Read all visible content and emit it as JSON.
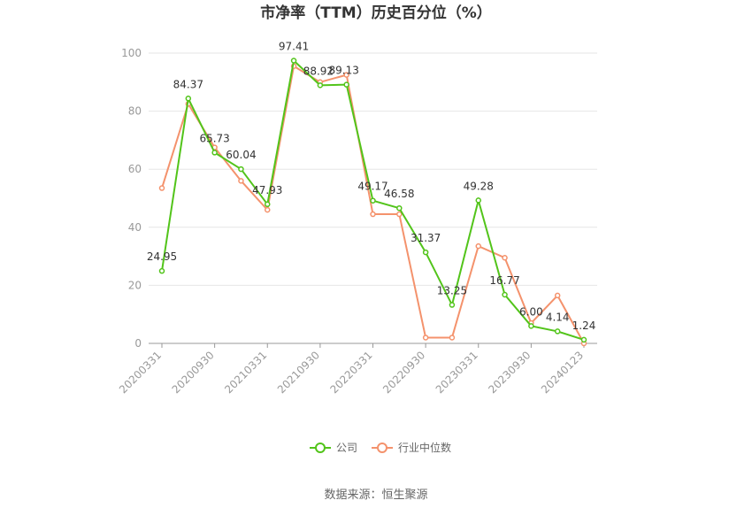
{
  "chart_data": {
    "type": "line",
    "title": "市净率（TTM）历史百分位（%）",
    "xlabel": "",
    "ylabel": "",
    "ylim": [
      0,
      100
    ],
    "yticks": [
      0,
      20,
      40,
      60,
      80,
      100
    ],
    "x": [
      "20200331",
      "20200630",
      "20200930",
      "20201231",
      "20210331",
      "20210630",
      "20210930",
      "20211231",
      "20220331",
      "20220630",
      "20220930",
      "20221230",
      "20230331",
      "20230630",
      "20230930",
      "20231229",
      "20240123"
    ],
    "x_tick_labels": [
      "20200331",
      "20200930",
      "20210331",
      "20210930",
      "20220331",
      "20220930",
      "20230331",
      "20230930",
      "20240123"
    ],
    "series": [
      {
        "name": "公司",
        "color": "#52c41a",
        "values": [
          24.95,
          84.37,
          65.73,
          60.04,
          47.93,
          97.41,
          88.92,
          89.13,
          49.17,
          46.58,
          31.37,
          13.25,
          49.28,
          16.77,
          6.0,
          4.14,
          1.24
        ],
        "labels": [
          "24.95",
          "84.37",
          "65.73",
          "60.04",
          "47.93",
          "97.41",
          "88.92",
          "89.13",
          "49.17",
          "46.58",
          "31.37",
          "13.25",
          "49.28",
          "16.77",
          "6.00",
          "4.14",
          "1.24"
        ]
      },
      {
        "name": "行业中位数",
        "color": "#f4926c",
        "values": [
          53.5,
          82.5,
          67.5,
          56.0,
          46.0,
          95.5,
          90.0,
          92.5,
          44.5,
          44.5,
          2.0,
          2.0,
          33.5,
          29.5,
          7.0,
          16.5,
          0.0
        ]
      }
    ],
    "legend_position": "bottom-center",
    "grid": true
  },
  "source": "数据来源：恒生聚源"
}
